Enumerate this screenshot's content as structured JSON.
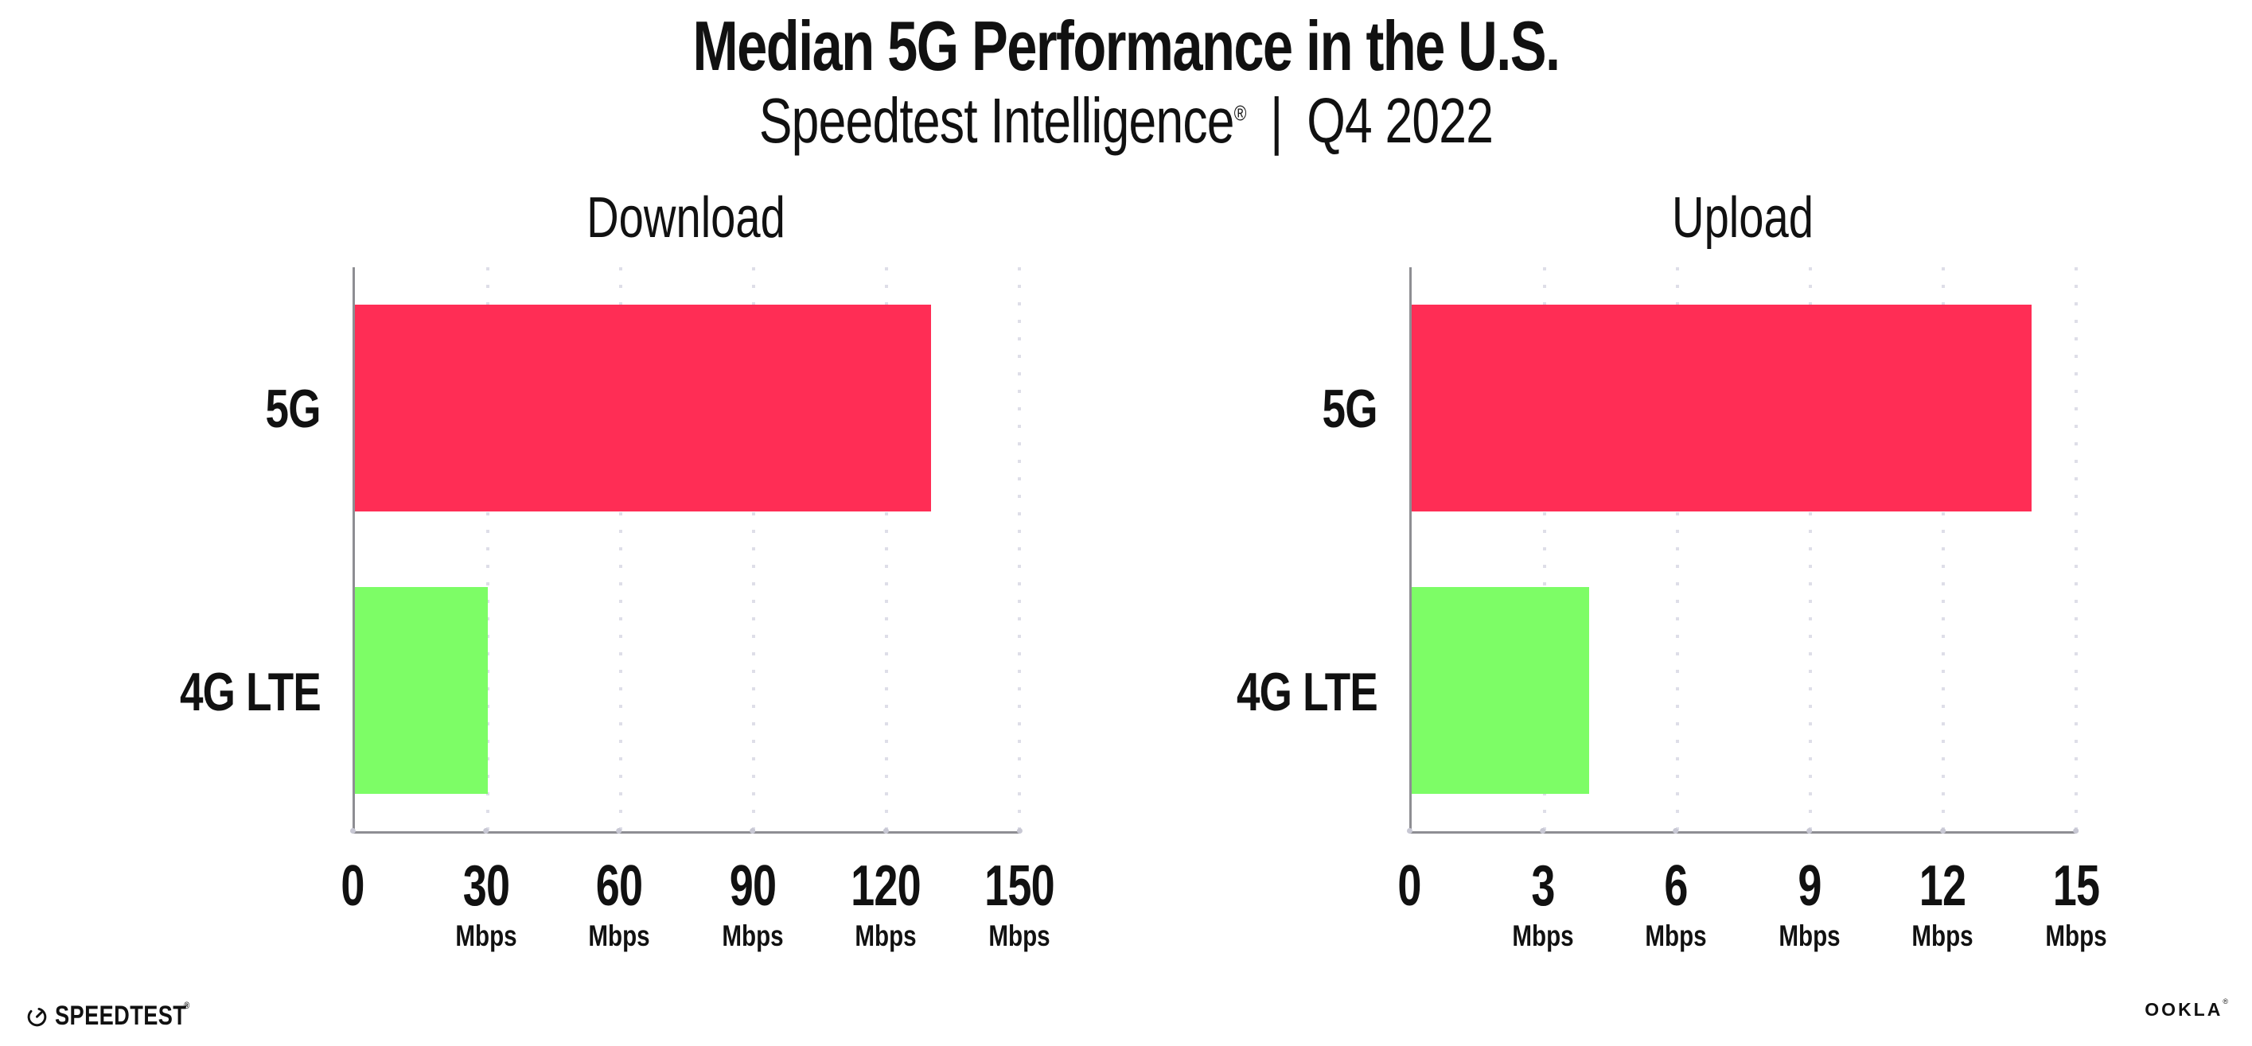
{
  "header": {
    "title": "Median 5G Performance in the U.S.",
    "subtitle_brand": "Speedtest Intelligence",
    "subtitle_reg": "®",
    "subtitle_sep": "|",
    "subtitle_period": "Q4 2022"
  },
  "colors": {
    "bar_5g_pink": "#FF2D55",
    "bar_4g_green": "#7DFD66",
    "axis_gray": "#8E8E93",
    "gridline_dot": "#DEDEE8",
    "text": "#111111",
    "background": "#FFFFFF"
  },
  "chart_data": [
    {
      "type": "bar",
      "orientation": "horizontal",
      "title": "Download",
      "categories": [
        "5G",
        "4G LTE"
      ],
      "values": [
        130,
        30
      ],
      "unit": "Mbps",
      "xlim": [
        0,
        150
      ],
      "ticks": [
        0,
        30,
        60,
        90,
        120,
        150
      ],
      "tick_unit_label": "Mbps",
      "bar_colors": [
        "#FF2D55",
        "#7DFD66"
      ],
      "grid": "dotted-vertical",
      "legend": "none"
    },
    {
      "type": "bar",
      "orientation": "horizontal",
      "title": "Upload",
      "categories": [
        "5G",
        "4G LTE"
      ],
      "values": [
        14,
        4
      ],
      "unit": "Mbps",
      "xlim": [
        0,
        15
      ],
      "ticks": [
        0,
        3,
        6,
        9,
        12,
        15
      ],
      "tick_unit_label": "Mbps",
      "bar_colors": [
        "#FF2D55",
        "#7DFD66"
      ],
      "grid": "dotted-vertical",
      "legend": "none"
    }
  ],
  "footer": {
    "speedtest_logo_text": "SPEEDTEST",
    "speedtest_trademark": "®",
    "ookla_logo_text": "OOKLA",
    "ookla_trademark": "®"
  }
}
